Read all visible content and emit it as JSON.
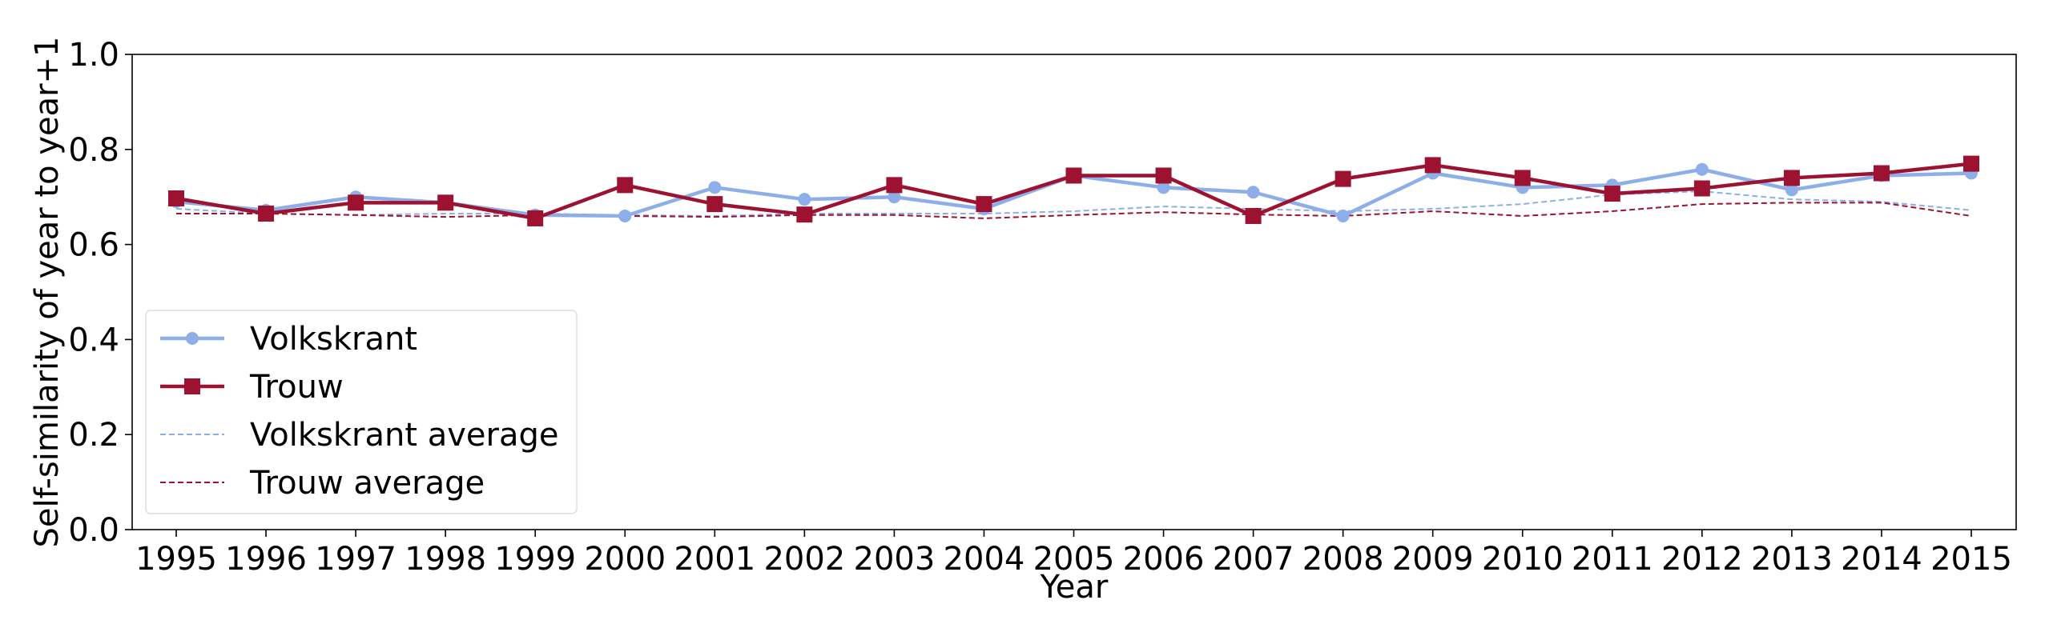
{
  "chart_data": {
    "type": "line",
    "title": "",
    "xlabel": "Year",
    "ylabel": "Self-similarity of year to year+1",
    "x": [
      1995,
      1996,
      1997,
      1998,
      1999,
      2000,
      2001,
      2002,
      2003,
      2004,
      2005,
      2006,
      2007,
      2008,
      2009,
      2010,
      2011,
      2012,
      2013,
      2014,
      2015
    ],
    "xtick_labels": [
      "1995",
      "1996",
      "1997",
      "1998",
      "1999",
      "2000",
      "2001",
      "2002",
      "2003",
      "2004",
      "2005",
      "2006",
      "2007",
      "2008",
      "2009",
      "2010",
      "2011",
      "2012",
      "2013",
      "2014",
      "2015"
    ],
    "ylim": [
      0.0,
      1.0
    ],
    "yticks": [
      0.0,
      0.2,
      0.4,
      0.6,
      0.8,
      1.0
    ],
    "ytick_labels": [
      "0.0",
      "0.2",
      "0.4",
      "0.6",
      "0.8",
      "1.0"
    ],
    "grid": false,
    "legend_position": "lower-left",
    "series": [
      {
        "name": "Volkskrant",
        "color": "#8eaeea",
        "style": "solid",
        "marker": "circle",
        "values": [
          0.69,
          0.672,
          0.7,
          0.688,
          0.662,
          0.66,
          0.72,
          0.695,
          0.7,
          0.675,
          0.745,
          0.72,
          0.71,
          0.66,
          0.75,
          0.72,
          0.725,
          0.758,
          0.715,
          0.745,
          0.75
        ]
      },
      {
        "name": "Trouw",
        "color": "#9c1230",
        "style": "solid",
        "marker": "square",
        "values": [
          0.697,
          0.665,
          0.688,
          0.688,
          0.655,
          0.725,
          0.685,
          0.663,
          0.725,
          0.685,
          0.745,
          0.745,
          0.66,
          0.738,
          0.767,
          0.74,
          0.707,
          0.718,
          0.74,
          0.75,
          0.77
        ]
      },
      {
        "name": "Volkskrant average",
        "color": "#8eaeea",
        "style": "dashed",
        "marker": "none",
        "values": [
          0.675,
          0.665,
          0.662,
          0.665,
          0.665,
          0.662,
          0.66,
          0.665,
          0.665,
          0.665,
          0.67,
          0.68,
          0.675,
          0.67,
          0.675,
          0.685,
          0.705,
          0.712,
          0.695,
          0.69,
          0.672
        ]
      },
      {
        "name": "Trouw average",
        "color": "#9c1230",
        "style": "dashed",
        "marker": "none",
        "values": [
          0.665,
          0.665,
          0.662,
          0.658,
          0.662,
          0.66,
          0.658,
          0.662,
          0.662,
          0.655,
          0.662,
          0.668,
          0.663,
          0.66,
          0.67,
          0.66,
          0.67,
          0.685,
          0.688,
          0.688,
          0.66
        ]
      }
    ]
  }
}
